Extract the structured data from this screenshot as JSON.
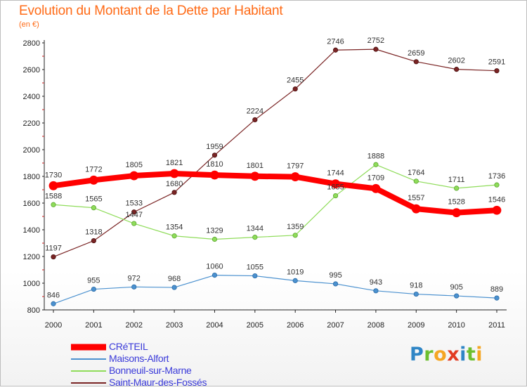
{
  "page": {
    "title": "Evolution du Montant de la Dette par Habitant",
    "subtitle": "(en €)"
  },
  "chart_data": {
    "type": "line",
    "title": "Evolution du Montant de la Dette par Habitant",
    "subtitle": "(en €)",
    "x": [
      "2000",
      "2001",
      "2002",
      "2003",
      "2004",
      "2005",
      "2006",
      "2007",
      "2008",
      "2009",
      "2010",
      "2011"
    ],
    "ylim": [
      800,
      2800
    ],
    "yticks": [
      800,
      1000,
      1200,
      1400,
      1600,
      1800,
      2000,
      2200,
      2400,
      2600,
      2800
    ],
    "grid": false,
    "legend_position": "bottom-left",
    "series": [
      {
        "name": "CRéTEIL",
        "color": "#ff0000",
        "values": [
          1730,
          1772,
          1805,
          1821,
          1810,
          1801,
          1797,
          1744,
          1709,
          1557,
          1528,
          1546
        ]
      },
      {
        "name": "Maisons-Alfort",
        "color": "#4b91cf",
        "values": [
          846,
          955,
          972,
          968,
          1060,
          1055,
          1019,
          995,
          943,
          918,
          905,
          889
        ]
      },
      {
        "name": "Bonneuil-sur-Marne",
        "color": "#8fdc5a",
        "values": [
          1588,
          1565,
          1447,
          1354,
          1329,
          1344,
          1359,
          1655,
          1888,
          1764,
          1711,
          1736
        ]
      },
      {
        "name": "Saint-Maur-des-Fossés",
        "color": "#7a2424",
        "values": [
          1197,
          1318,
          1533,
          1680,
          1959,
          2224,
          2455,
          2746,
          2752,
          2659,
          2602,
          2591
        ]
      }
    ]
  },
  "logo": {
    "letters": [
      "P",
      "r",
      "o",
      "x",
      "i",
      "t",
      "i"
    ]
  }
}
